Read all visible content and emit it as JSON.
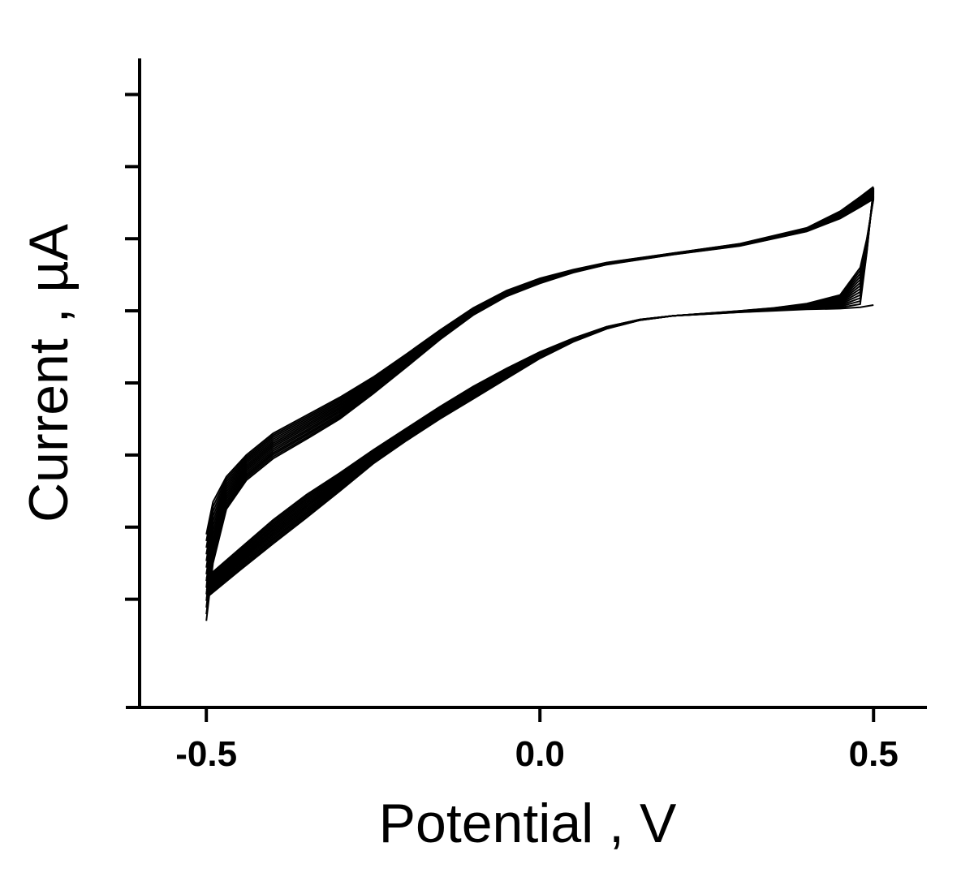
{
  "chart_data": {
    "type": "line",
    "title": "",
    "xlabel": "Potential , V",
    "ylabel": "Current , µA",
    "xlim": [
      -0.6,
      0.58
    ],
    "ylim": [
      -8.5,
      0.5
    ],
    "x_ticks": [
      {
        "value": -0.5,
        "label": "-0.5"
      },
      {
        "value": 0.0,
        "label": "0.0"
      },
      {
        "value": 0.5,
        "label": "0.5"
      }
    ],
    "y_ticks": [
      0,
      -1,
      -2,
      -3,
      -4,
      -5,
      -6,
      -7
    ],
    "y_tick_labels_shown": false,
    "grid": false,
    "legend": "none",
    "line_color": "#000000",
    "cycles": {
      "count": 14,
      "anodic_first": {
        "x": [
          -0.5,
          -0.49,
          -0.47,
          -0.44,
          -0.4,
          -0.35,
          -0.3,
          -0.25,
          -0.2,
          -0.15,
          -0.1,
          -0.05,
          0.0,
          0.05,
          0.1,
          0.2,
          0.3,
          0.4,
          0.45,
          0.48,
          0.5
        ],
        "y": [
          -6.1,
          -5.65,
          -5.3,
          -5.0,
          -4.7,
          -4.45,
          -4.2,
          -3.92,
          -3.6,
          -3.27,
          -2.96,
          -2.72,
          -2.55,
          -2.43,
          -2.33,
          -2.2,
          -2.07,
          -1.85,
          -1.62,
          -1.42,
          -1.28
        ]
      },
      "anodic_last": {
        "x": [
          -0.5,
          -0.49,
          -0.47,
          -0.44,
          -0.4,
          -0.35,
          -0.3,
          -0.25,
          -0.2,
          -0.15,
          -0.1,
          -0.05,
          0.0,
          0.05,
          0.1,
          0.2,
          0.3,
          0.4,
          0.45,
          0.48,
          0.5
        ],
        "y": [
          -7.3,
          -6.5,
          -5.75,
          -5.35,
          -5.05,
          -4.78,
          -4.5,
          -4.15,
          -3.78,
          -3.4,
          -3.06,
          -2.8,
          -2.62,
          -2.47,
          -2.36,
          -2.22,
          -2.1,
          -1.9,
          -1.72,
          -1.56,
          -1.45
        ]
      },
      "cathodic_first": {
        "x": [
          0.5,
          0.48,
          0.45,
          0.4,
          0.35,
          0.3,
          0.2,
          0.15,
          0.1,
          0.05,
          0.0,
          -0.05,
          -0.1,
          -0.15,
          -0.2,
          -0.25,
          -0.3,
          -0.35,
          -0.4,
          -0.45,
          -0.5
        ],
        "y": [
          -2.92,
          -2.95,
          -2.97,
          -2.98,
          -3.0,
          -3.02,
          -3.07,
          -3.12,
          -3.22,
          -3.38,
          -3.57,
          -3.8,
          -4.05,
          -4.33,
          -4.63,
          -4.93,
          -5.25,
          -5.55,
          -5.9,
          -6.3,
          -6.7
        ]
      },
      "cathodic_last": {
        "x": [
          0.5,
          0.49,
          0.48,
          0.45,
          0.4,
          0.35,
          0.3,
          0.2,
          0.15,
          0.1,
          0.05,
          0.0,
          -0.05,
          -0.1,
          -0.15,
          -0.2,
          -0.25,
          -0.3,
          -0.35,
          -0.4,
          -0.45,
          -0.5
        ],
        "y": [
          -1.45,
          -2.0,
          -2.4,
          -2.78,
          -2.9,
          -2.96,
          -3.0,
          -3.07,
          -3.13,
          -3.25,
          -3.43,
          -3.66,
          -3.94,
          -4.22,
          -4.5,
          -4.8,
          -5.12,
          -5.5,
          -5.87,
          -6.23,
          -6.6,
          -6.98
        ]
      }
    }
  }
}
